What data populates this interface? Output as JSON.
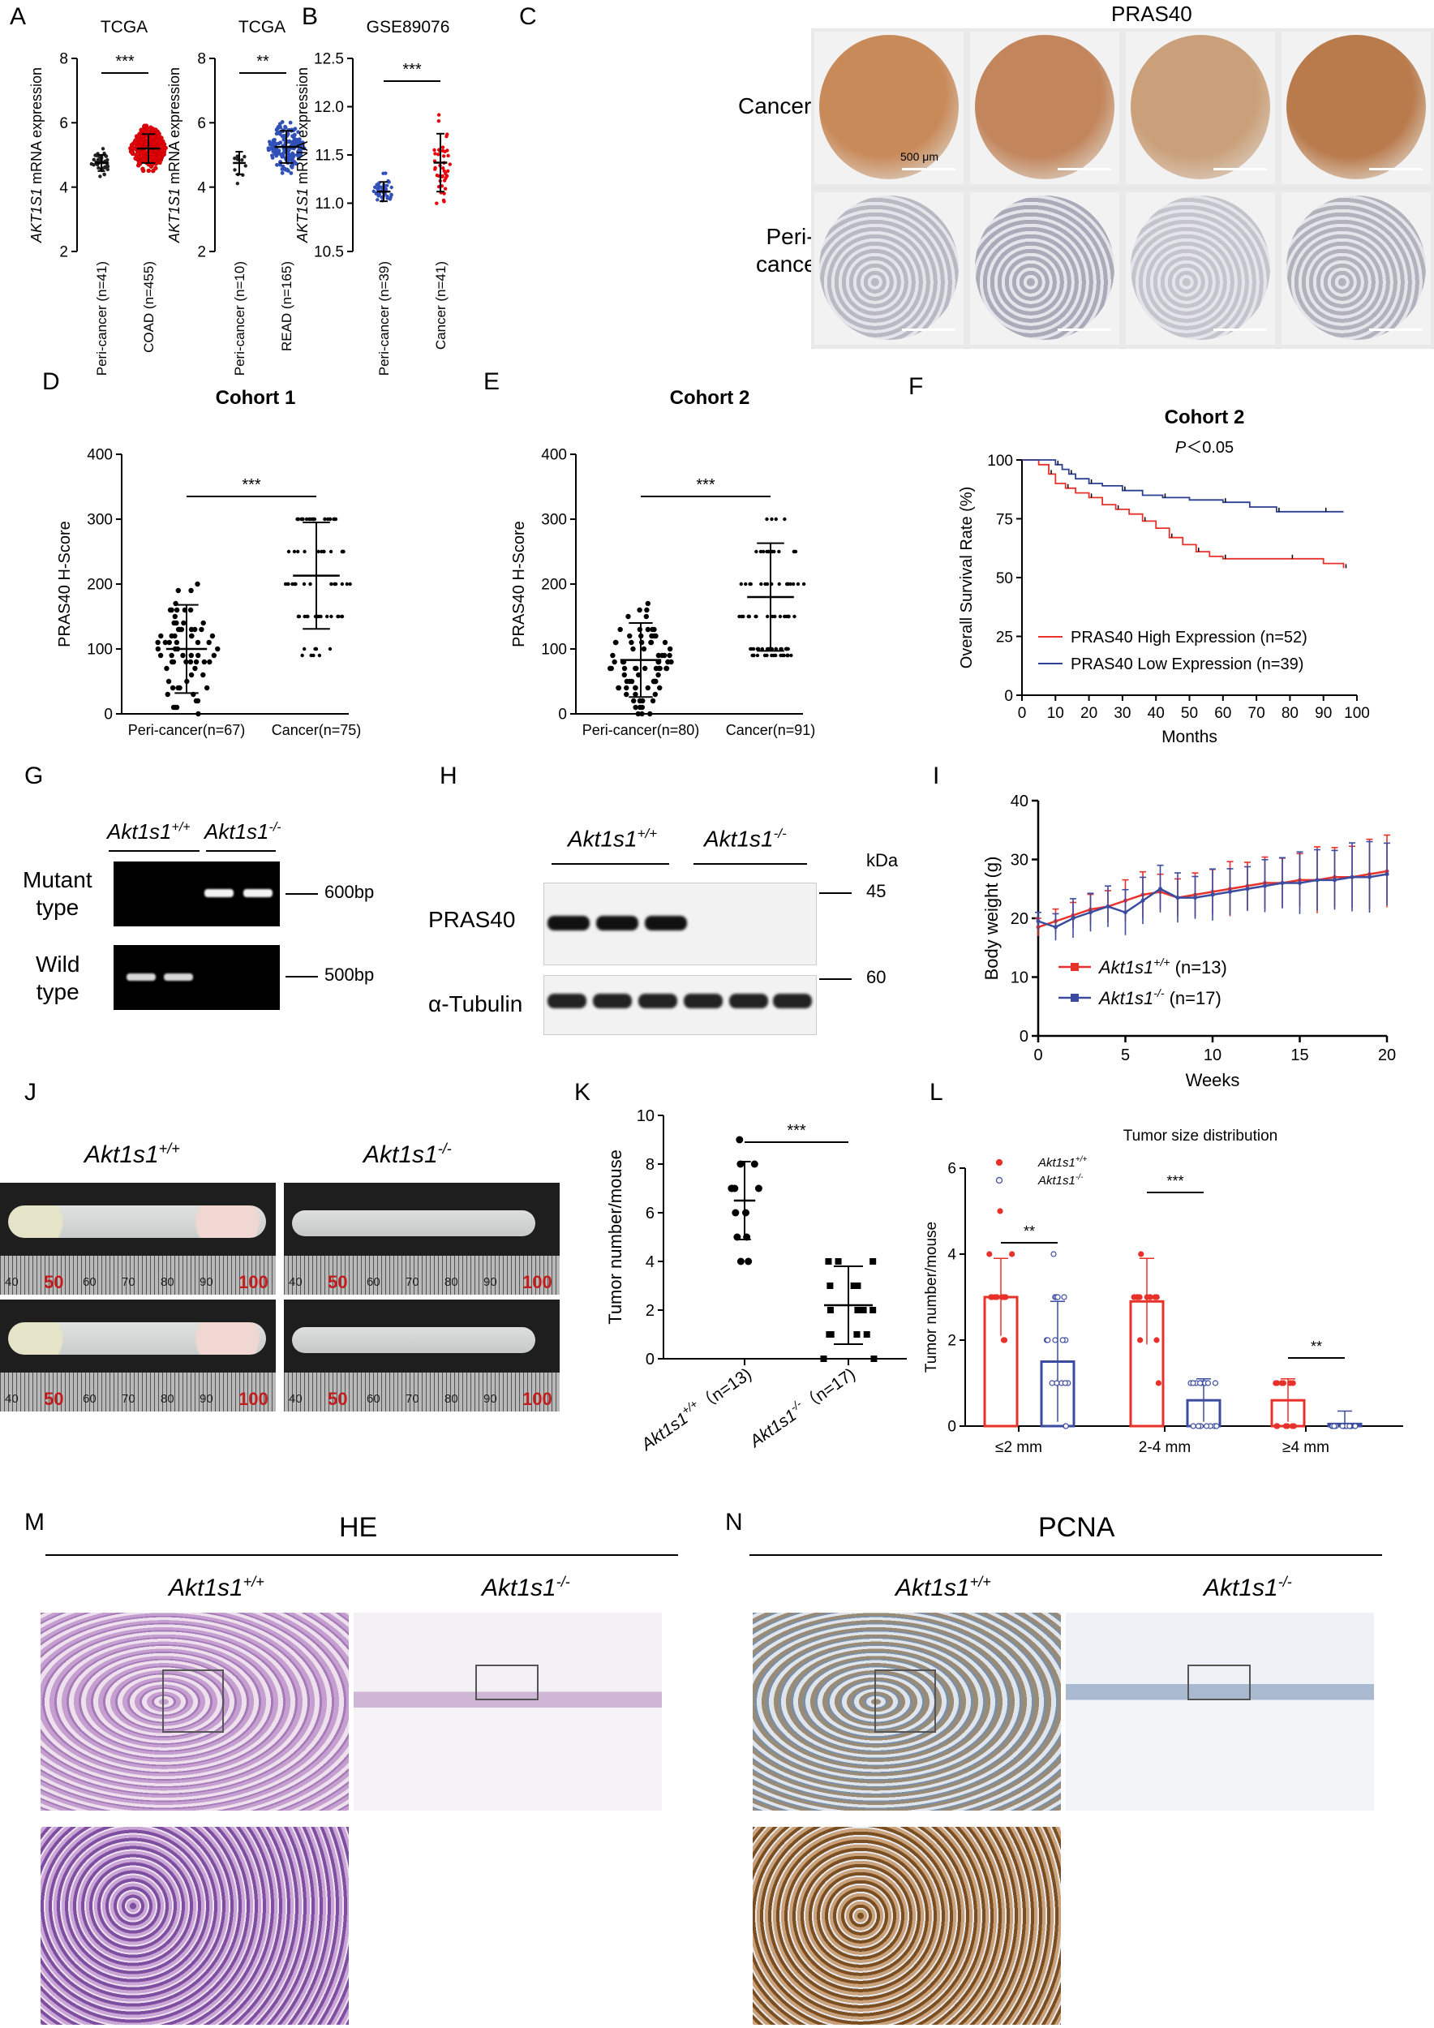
{
  "panels": {
    "A": {
      "letter": "A",
      "left_title": "TCGA",
      "right_title": "TCGA",
      "ylabel_gene": "AKT1S1",
      "ylabel_rest": " mRNA expression",
      "left_cats": [
        "Peri-cancer (n=41)",
        "COAD (n=455)"
      ],
      "right_cats": [
        "Peri-cancer (n=10)",
        "READ (n=165)"
      ],
      "yticks": [
        "2",
        "4",
        "6",
        "8"
      ],
      "left_sig": "***",
      "right_sig": "**"
    },
    "B": {
      "letter": "B",
      "title": "GSE89076",
      "ylabel_gene": "AKT1S1",
      "ylabel_rest": " mRNA expression",
      "cats": [
        "Peri-cancer (n=39)",
        "Cancer (n=41)"
      ],
      "yticks": [
        "10.5",
        "11.0",
        "11.5",
        "12.0",
        "12.5"
      ],
      "sig": "***"
    },
    "C": {
      "letter": "C",
      "title": "PRAS40",
      "row1": "Cancer",
      "row2_l1": "Peri-",
      "row2_l2": "cancer",
      "scale": "500 μm"
    },
    "D": {
      "letter": "D",
      "title": "Cohort 1",
      "ylabel": "PRAS40 H-Score",
      "yticks": [
        "0",
        "100",
        "200",
        "300",
        "400"
      ],
      "cats": [
        "Peri-cancer(n=67)",
        "Cancer(n=75)"
      ],
      "sig": "***"
    },
    "E": {
      "letter": "E",
      "title": "Cohort 2",
      "ylabel": "PRAS40 H-Score",
      "yticks": [
        "0",
        "100",
        "200",
        "300",
        "400"
      ],
      "cats": [
        "Peri-cancer(n=80)",
        "Cancer(n=91)"
      ],
      "sig": "***"
    },
    "F": {
      "letter": "F",
      "title": "Cohort 2",
      "pval_p": "P",
      "pval_rest": "＜0.05",
      "ylabel": "Overall Survival Rate (%)",
      "xlabel": "Months",
      "yticks": [
        "0",
        "25",
        "50",
        "75",
        "100"
      ],
      "xticks": [
        "0",
        "10",
        "20",
        "30",
        "40",
        "50",
        "60",
        "70",
        "80",
        "90",
        "100"
      ],
      "legend_high": "PRAS40 High Expression (n=52)",
      "legend_low": "PRAS40 Low Expression (n=39)",
      "color_high": "#e8312a",
      "color_low": "#2b3f93"
    },
    "G": {
      "letter": "G",
      "geno_wt": "Akt1s1",
      "geno_wt_sup": "+/+",
      "geno_ko": "Akt1s1",
      "geno_ko_sup": "-/-",
      "row1_l1": "Mutant",
      "row1_l2": "type",
      "row2_l1": "Wild",
      "row2_l2": "type",
      "band1": "600bp",
      "band2": "500bp"
    },
    "H": {
      "letter": "H",
      "geno_wt": "Akt1s1",
      "geno_wt_sup": "+/+",
      "geno_ko": "Akt1s1",
      "geno_ko_sup": "-/-",
      "kda": "kDa",
      "row1": "PRAS40",
      "row2": "α-Tubulin",
      "mw1": "45",
      "mw2": "60"
    },
    "I": {
      "letter": "I",
      "ylabel": "Body weight (g)",
      "xlabel": "Weeks",
      "yticks": [
        "0",
        "10",
        "20",
        "30",
        "40"
      ],
      "xticks": [
        "0",
        "5",
        "10",
        "15",
        "20"
      ],
      "legend_wt": "Akt1s1",
      "legend_wt_sup": "+/+",
      "legend_wt_n": " (n=13)",
      "legend_ko": "Akt1s1",
      "legend_ko_sup": "-/-",
      "legend_ko_n": " (n=17)",
      "color_wt": "#e8312a",
      "color_ko": "#3b4ca0"
    },
    "J": {
      "letter": "J",
      "geno_wt": "Akt1s1",
      "geno_wt_sup": "+/+",
      "geno_ko": "Akt1s1",
      "geno_ko_sup": "-/-",
      "ruler": [
        "40",
        "50",
        "60",
        "70",
        "80",
        "90",
        "100"
      ]
    },
    "K": {
      "letter": "K",
      "ylabel": "Tumor number/mouse",
      "yticks": [
        "0",
        "2",
        "4",
        "6",
        "8",
        "10"
      ],
      "cat1": "Akt1s1",
      "cat1_sup": "+/+",
      "cat1_n": "（n=13)",
      "cat2": "Akt1s1",
      "cat2_sup": "-/-",
      "cat2_n": "（n=17)",
      "sig": "***"
    },
    "L": {
      "letter": "L",
      "title": "Tumor size distribution",
      "ylabel": "Tumor number/mouse",
      "yticks": [
        "0",
        "2",
        "4",
        "6"
      ],
      "cats": [
        "≤2 mm",
        "2-4 mm",
        "≥4 mm"
      ],
      "legend_wt": "Akt1s1",
      "legend_wt_sup": "+/+",
      "legend_ko": "Akt1s1",
      "legend_ko_sup": "-/-",
      "sig1": "**",
      "sig2": "***",
      "sig3": "**"
    },
    "M": {
      "letter": "M",
      "title": "HE",
      "geno_wt": "Akt1s1",
      "geno_wt_sup": "+/+",
      "geno_ko": "Akt1s1",
      "geno_ko_sup": "-/-"
    },
    "N": {
      "letter": "N",
      "title": "PCNA",
      "geno_wt": "Akt1s1",
      "geno_wt_sup": "+/+",
      "geno_ko": "Akt1s1",
      "geno_ko_sup": "-/-"
    }
  },
  "chart_data": [
    {
      "type": "scatter",
      "panel": "A-left",
      "categories": [
        "Peri-cancer (n=41)",
        "COAD (n=455)"
      ],
      "means": [
        4.75,
        5.2
      ],
      "sd": [
        0.25,
        0.45
      ],
      "ylim": [
        2,
        8
      ],
      "ylabel": "AKT1S1 mRNA expression",
      "title": "TCGA"
    },
    {
      "type": "scatter",
      "panel": "A-right",
      "categories": [
        "Peri-cancer (n=10)",
        "READ (n=165)"
      ],
      "means": [
        4.75,
        5.25
      ],
      "sd": [
        0.35,
        0.5
      ],
      "ylim": [
        2,
        8
      ],
      "ylabel": "AKT1S1 mRNA expression",
      "title": "TCGA"
    },
    {
      "type": "scatter",
      "panel": "B",
      "categories": [
        "Peri-cancer (n=39)",
        "Cancer (n=41)"
      ],
      "means": [
        11.12,
        11.42
      ],
      "sd": [
        0.1,
        0.3
      ],
      "ylim": [
        10.5,
        12.5
      ],
      "ylabel": "AKT1S1 mRNA expression",
      "title": "GSE89076"
    },
    {
      "type": "scatter",
      "panel": "D",
      "categories": [
        "Peri-cancer(n=67)",
        "Cancer(n=75)"
      ],
      "means": [
        100,
        213
      ],
      "sd": [
        68,
        82
      ],
      "ylim": [
        0,
        400
      ],
      "ylabel": "PRAS40 H-Score",
      "title": "Cohort 1"
    },
    {
      "type": "scatter",
      "panel": "E",
      "categories": [
        "Peri-cancer(n=80)",
        "Cancer(n=91)"
      ],
      "means": [
        83,
        180
      ],
      "sd": [
        57,
        83
      ],
      "ylim": [
        0,
        400
      ],
      "ylabel": "PRAS40 H-Score",
      "title": "Cohort 2"
    },
    {
      "type": "line",
      "panel": "F",
      "title": "Cohort 2",
      "xlabel": "Months",
      "ylabel": "Overall Survival Rate (%)",
      "xlim": [
        0,
        100
      ],
      "ylim": [
        0,
        100
      ],
      "series": [
        {
          "name": "PRAS40 High Expression (n=52)",
          "x": [
            0,
            5,
            8,
            10,
            13,
            16,
            20,
            24,
            28,
            32,
            36,
            40,
            44,
            48,
            52,
            56,
            60,
            70,
            80,
            90,
            96
          ],
          "y": [
            100,
            98,
            94,
            90,
            88,
            86,
            84,
            81,
            79,
            77,
            74,
            71,
            67,
            64,
            61,
            59,
            58,
            58,
            58,
            56,
            54
          ]
        },
        {
          "name": "PRAS40 Low Expression (n=39)",
          "x": [
            0,
            8,
            10,
            12,
            14,
            16,
            20,
            24,
            30,
            36,
            42,
            50,
            60,
            68,
            76,
            80,
            90,
            96
          ],
          "y": [
            100,
            100,
            98,
            96,
            94,
            92,
            90,
            89,
            87,
            85,
            84,
            83,
            82,
            80,
            78,
            78,
            78,
            78
          ]
        }
      ]
    },
    {
      "type": "line",
      "panel": "I",
      "xlabel": "Weeks",
      "ylabel": "Body weight (g)",
      "xlim": [
        0,
        20
      ],
      "ylim": [
        0,
        40
      ],
      "series": [
        {
          "name": "Akt1s1+/+ (n=13)",
          "x": [
            0,
            1,
            2,
            3,
            4,
            5,
            6,
            7,
            8,
            9,
            10,
            11,
            12,
            13,
            14,
            15,
            16,
            17,
            18,
            19,
            20
          ],
          "y": [
            18.5,
            19.5,
            20.5,
            21.5,
            22,
            23,
            24,
            24.5,
            23.5,
            24,
            24.5,
            25,
            25.5,
            26,
            26,
            26.5,
            26.5,
            27,
            27,
            27.5,
            28
          ]
        },
        {
          "name": "Akt1s1-/- (n=17)",
          "x": [
            0,
            1,
            2,
            3,
            4,
            5,
            6,
            7,
            8,
            9,
            10,
            11,
            12,
            13,
            14,
            15,
            16,
            17,
            18,
            19,
            20
          ],
          "y": [
            19.5,
            18.5,
            20,
            21,
            22,
            21,
            23,
            25,
            23.5,
            23.5,
            24,
            24.5,
            25,
            25.5,
            26,
            26,
            26.5,
            26.5,
            27,
            27,
            27.5
          ]
        }
      ]
    },
    {
      "type": "scatter",
      "panel": "K",
      "categories": [
        "Akt1s1+/+ (n=13)",
        "Akt1s1-/- (n=17)"
      ],
      "means": [
        6.5,
        2.2
      ],
      "sd": [
        1.6,
        1.6
      ],
      "ylim": [
        0,
        10
      ],
      "ylabel": "Tumor number/mouse"
    },
    {
      "type": "bar",
      "panel": "L",
      "title": "Tumor size distribution",
      "categories": [
        "≤2 mm",
        "2-4 mm",
        "≥4 mm"
      ],
      "ylabel": "Tumor number/mouse",
      "ylim": [
        0,
        6
      ],
      "series": [
        {
          "name": "Akt1s1+/+",
          "values": [
            3,
            2.9,
            0.6
          ],
          "sd": [
            0.9,
            1.0,
            0.5
          ]
        },
        {
          "name": "Akt1s1-/-",
          "values": [
            1.5,
            0.6,
            0.05
          ],
          "sd": [
            1.4,
            0.5,
            0.3
          ]
        }
      ]
    }
  ]
}
